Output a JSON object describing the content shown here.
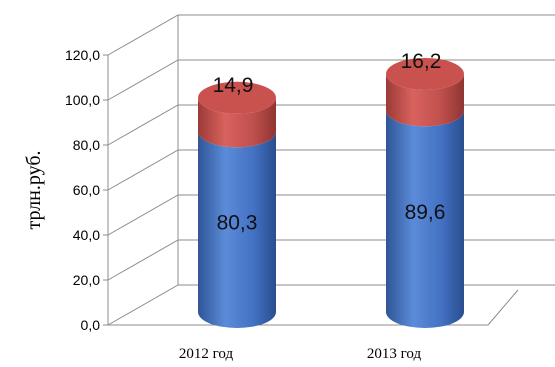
{
  "chart_data": {
    "type": "bar",
    "subtype": "stacked-3d-cylinder",
    "categories": [
      "2012 год",
      "2013 год"
    ],
    "series": [
      {
        "values": [
          80.3,
          89.6
        ],
        "labels": [
          "80,3",
          "89,6"
        ],
        "color": "#4472c4"
      },
      {
        "values": [
          14.9,
          16.2
        ],
        "labels": [
          "14,9",
          "16,2"
        ],
        "color": "#c0504d"
      }
    ],
    "ylabel": "трлн.руб.",
    "ylim": [
      0,
      120
    ],
    "yticks": [
      "0,0",
      "20,0",
      "40,0",
      "60,0",
      "80,0",
      "100,0",
      "120,0"
    ],
    "grid": true,
    "legend": "none"
  }
}
